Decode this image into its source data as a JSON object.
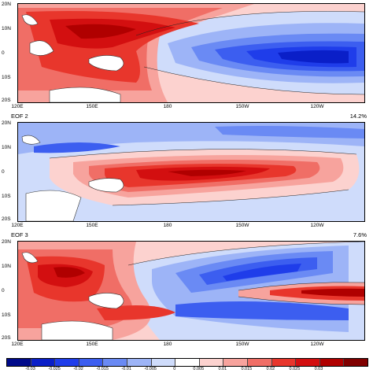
{
  "panels": [
    {
      "title": "",
      "percent": "",
      "lat_labels": [
        "20N",
        "10N",
        "0",
        "10S",
        "20S"
      ],
      "lon_labels": [
        "120E",
        "150E",
        "180",
        "150W",
        "120W"
      ],
      "pattern": "pos_west_neg_east_equator"
    },
    {
      "title": "EOF 2",
      "percent": "14.2%",
      "lat_labels": [
        "20N",
        "10N",
        "0",
        "10S",
        "20S"
      ],
      "lon_labels": [
        "120E",
        "150E",
        "180",
        "150W",
        "120W"
      ],
      "pattern": "pos_central_equator"
    },
    {
      "title": "EOF 3",
      "percent": "7.6%",
      "lat_labels": [
        "20N",
        "10N",
        "0",
        "10S",
        "20S"
      ],
      "lon_labels": [
        "120E",
        "150E",
        "180",
        "150W",
        "120W"
      ],
      "pattern": "tripole"
    }
  ],
  "colorbar": {
    "tick_labels": [
      "-0.03",
      "-0.025",
      "-0.02",
      "-0.015",
      "-0.01",
      "-0.005",
      "0",
      "0.005",
      "0.01",
      "0.015",
      "0.02",
      "0.025",
      "0.03"
    ],
    "colors": [
      "#000a8a",
      "#0a1fc8",
      "#1f3dea",
      "#3c5ef0",
      "#6a8af4",
      "#9db4f7",
      "#cfdcfb",
      "#ffffff",
      "#fcd2cf",
      "#f7a39d",
      "#f06e66",
      "#e8362c",
      "#d30f10",
      "#b00000",
      "#800000"
    ]
  },
  "colors": {
    "land": "#ffffff",
    "coast": "#333333"
  }
}
